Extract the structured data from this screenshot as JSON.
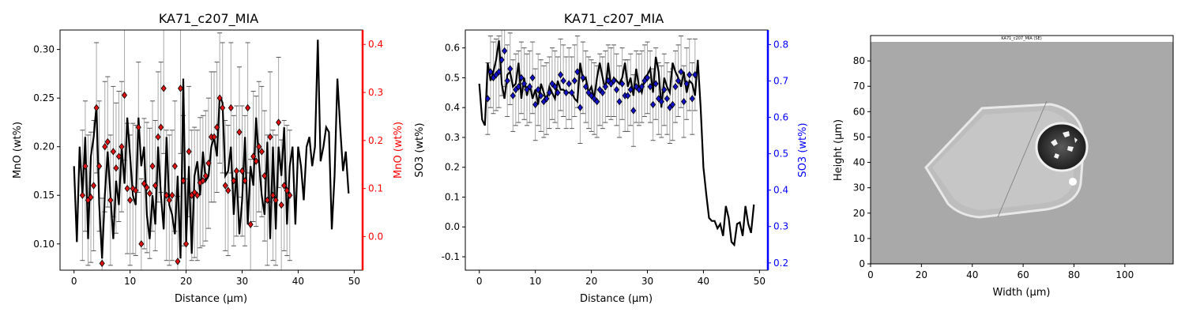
{
  "chart_data": [
    {
      "type": "line",
      "title": "KA71_c207_MIA",
      "xlabel": "Distance (µm)",
      "ylabel": "MnO (wt%)",
      "ylabel_right": "MnO (wt%)",
      "xlim": [
        -2.5,
        51.5
      ],
      "ylim": [
        0.073,
        0.32
      ],
      "ylim_right": [
        -0.07,
        0.43
      ],
      "xticks": [
        0,
        10,
        20,
        30,
        40,
        50
      ],
      "yticks": [
        0.1,
        0.15,
        0.2,
        0.25,
        0.3
      ],
      "yticks_right": [
        0.0,
        0.1,
        0.2,
        0.3,
        0.4
      ],
      "right_axis_color": "#ff0000",
      "line_color": "#000000",
      "point_color": "#e01010",
      "line_series": {
        "x": [
          0,
          0.5,
          1,
          1.5,
          2,
          2.5,
          3,
          3.5,
          4,
          4.5,
          5,
          5.5,
          6,
          6.5,
          7,
          7.5,
          8,
          8.5,
          9,
          9.5,
          10,
          10.5,
          11,
          11.5,
          12,
          12.5,
          13,
          13.5,
          14,
          14.5,
          15,
          15.5,
          16,
          16.5,
          17,
          17.5,
          18,
          18.5,
          19,
          19.5,
          20,
          20.5,
          21,
          21.5,
          22,
          22.5,
          23,
          23.5,
          24,
          24.5,
          25,
          25.5,
          26,
          26.5,
          27,
          27.5,
          28,
          28.5,
          29,
          29.5,
          30,
          30.5,
          31,
          31.5,
          32,
          32.5,
          33,
          33.5,
          34,
          34.5,
          35,
          35.5,
          36,
          36.5,
          37,
          37.5,
          38,
          38.5,
          39,
          39.5,
          40,
          40.5,
          41,
          41.5,
          42,
          42.5,
          43,
          43.5,
          44,
          44.5,
          45,
          45.5,
          46,
          46.5,
          47,
          47.5,
          48,
          48.5,
          49
        ],
        "y": [
          0.18,
          0.102,
          0.2,
          0.15,
          0.21,
          0.105,
          0.19,
          0.21,
          0.242,
          0.14,
          0.085,
          0.15,
          0.195,
          0.15,
          0.105,
          0.165,
          0.14,
          0.2,
          0.162,
          0.23,
          0.19,
          0.15,
          0.14,
          0.23,
          0.18,
          0.2,
          0.13,
          0.105,
          0.15,
          0.12,
          0.2,
          0.15,
          0.115,
          0.21,
          0.14,
          0.13,
          0.11,
          0.17,
          0.085,
          0.27,
          0.1,
          0.18,
          0.09,
          0.17,
          0.185,
          0.15,
          0.195,
          0.165,
          0.17,
          0.2,
          0.21,
          0.19,
          0.252,
          0.245,
          0.17,
          0.175,
          0.2,
          0.13,
          0.175,
          0.11,
          0.145,
          0.21,
          0.12,
          0.18,
          0.16,
          0.23,
          0.185,
          0.15,
          0.13,
          0.205,
          0.105,
          0.2,
          0.115,
          0.2,
          0.17,
          0.22,
          0.12,
          0.18,
          0.2,
          0.12,
          0.2,
          0.18,
          0.145,
          0.2,
          0.21,
          0.18,
          0.2,
          0.31,
          0.185,
          0.2,
          0.22,
          0.215,
          0.115,
          0.17,
          0.27,
          0.22,
          0.175,
          0.195,
          0.152
        ]
      },
      "points": {
        "x": [
          1.5,
          2,
          2.5,
          3,
          3.5,
          4,
          4.5,
          5,
          5.5,
          6,
          6.5,
          7,
          7.5,
          8,
          8.5,
          9,
          9.5,
          10,
          10.5,
          11,
          11.5,
          12,
          12.5,
          13,
          13.5,
          14,
          14.5,
          15,
          15.5,
          16,
          16.5,
          17,
          17.5,
          18,
          18.5,
          19,
          19.5,
          20,
          20.5,
          21,
          21.5,
          22,
          22.5,
          23,
          23.5,
          24,
          24.5,
          25,
          25.5,
          26,
          26.5,
          27,
          27.5,
          28,
          28.5,
          29,
          29.5,
          30,
          30.5,
          31,
          31.5,
          32,
          32.5,
          33,
          33.5,
          34,
          34.5,
          35,
          35.5,
          36,
          36.5,
          37,
          37.5,
          38,
          38.5
        ],
        "y": [
          0.15,
          0.18,
          0.145,
          0.148,
          0.16,
          0.24,
          0.18,
          0.08,
          0.2,
          0.205,
          0.145,
          0.195,
          0.178,
          0.19,
          0.2,
          0.253,
          0.157,
          0.145,
          0.157,
          0.155,
          0.22,
          0.1,
          0.162,
          0.158,
          0.152,
          0.18,
          0.16,
          0.21,
          0.22,
          0.26,
          0.15,
          0.145,
          0.15,
          0.18,
          0.082,
          0.26,
          0.165,
          0.1,
          0.195,
          0.15,
          0.153,
          0.15,
          0.163,
          0.165,
          0.17,
          0.183,
          0.21,
          0.21,
          0.22,
          0.25,
          0.24,
          0.16,
          0.155,
          0.24,
          0.165,
          0.175,
          0.215,
          0.175,
          0.165,
          0.24,
          0.12,
          0.19,
          0.185,
          0.2,
          0.195,
          0.17,
          0.145,
          0.21,
          0.15,
          0.145,
          0.225,
          0.14,
          0.16,
          0.155,
          0.15
        ],
        "err": [
          0.067,
          0.067,
          0.067,
          0.067,
          0.067,
          0.067,
          0.067,
          0.067,
          0.067,
          0.067,
          0.067,
          0.067,
          0.067,
          0.067,
          0.067,
          0.067,
          0.067,
          0.067,
          0.067,
          0.067,
          0.067,
          0.067,
          0.067,
          0.067,
          0.067,
          0.067,
          0.067,
          0.067,
          0.067,
          0.067,
          0.067,
          0.067,
          0.067,
          0.067,
          0.067,
          0.067,
          0.067,
          0.067,
          0.067,
          0.067,
          0.067,
          0.067,
          0.067,
          0.067,
          0.067,
          0.067,
          0.067,
          0.067,
          0.067,
          0.067,
          0.067,
          0.067,
          0.067,
          0.067,
          0.067,
          0.067,
          0.067,
          0.067,
          0.067,
          0.067,
          0.067,
          0.067,
          0.067,
          0.067,
          0.067,
          0.067,
          0.067,
          0.067,
          0.067,
          0.067,
          0.067,
          0.067,
          0.067,
          0.067,
          0.067
        ]
      }
    },
    {
      "type": "line",
      "title": "KA71_c207_MIA",
      "xlabel": "Distance (µm)",
      "ylabel": "SO3 (wt%)",
      "ylabel_right": "SO3 (wt%)",
      "xlim": [
        -2.5,
        51.5
      ],
      "ylim": [
        -0.145,
        0.66
      ],
      "ylim_right": [
        0.18,
        0.84
      ],
      "xticks": [
        0,
        10,
        20,
        30,
        40,
        50
      ],
      "yticks": [
        -0.1,
        0.0,
        0.1,
        0.2,
        0.3,
        0.4,
        0.5,
        0.6
      ],
      "yticks_right": [
        0.2,
        0.3,
        0.4,
        0.5,
        0.6,
        0.7,
        0.8
      ],
      "right_axis_color": "#0000ff",
      "line_color": "#000000",
      "point_color": "#1010c8",
      "line_series": {
        "x": [
          0,
          0.5,
          1,
          1.5,
          2,
          2.5,
          3,
          3.5,
          4,
          4.5,
          5,
          5.5,
          6,
          6.5,
          7,
          7.5,
          8,
          8.5,
          9,
          9.5,
          10,
          10.5,
          11,
          11.5,
          12,
          12.5,
          13,
          13.5,
          14,
          14.5,
          15,
          15.5,
          16,
          16.5,
          17,
          17.5,
          18,
          18.5,
          19,
          19.5,
          20,
          20.5,
          21,
          21.5,
          22,
          22.5,
          23,
          23.5,
          24,
          24.5,
          25,
          25.5,
          26,
          26.5,
          27,
          27.5,
          28,
          28.5,
          29,
          29.5,
          30,
          30.5,
          31,
          31.5,
          32,
          32.5,
          33,
          33.5,
          34,
          34.5,
          35,
          35.5,
          36,
          36.5,
          37,
          37.5,
          38,
          38.5,
          39,
          39.5,
          40,
          40.5,
          41,
          41.5,
          42,
          42.5,
          43,
          43.5,
          44,
          44.5,
          45,
          45.5,
          46,
          46.5,
          47,
          47.5,
          48,
          48.5,
          49
        ],
        "y": [
          0.48,
          0.36,
          0.34,
          0.55,
          0.49,
          0.52,
          0.56,
          0.625,
          0.48,
          0.43,
          0.51,
          0.52,
          0.47,
          0.48,
          0.55,
          0.43,
          0.5,
          0.44,
          0.48,
          0.43,
          0.46,
          0.41,
          0.48,
          0.45,
          0.42,
          0.47,
          0.45,
          0.43,
          0.49,
          0.46,
          0.46,
          0.45,
          0.45,
          0.45,
          0.43,
          0.42,
          0.55,
          0.49,
          0.5,
          0.45,
          0.47,
          0.43,
          0.5,
          0.55,
          0.5,
          0.46,
          0.55,
          0.47,
          0.5,
          0.49,
          0.48,
          0.5,
          0.55,
          0.47,
          0.5,
          0.44,
          0.53,
          0.47,
          0.45,
          0.5,
          0.51,
          0.53,
          0.45,
          0.57,
          0.52,
          0.4,
          0.5,
          0.47,
          0.45,
          0.55,
          0.52,
          0.5,
          0.47,
          0.52,
          0.45,
          0.49,
          0.48,
          0.44,
          0.56,
          0.4,
          0.2,
          0.11,
          0.03,
          0.02,
          0.02,
          -0.005,
          0.01,
          -0.03,
          0.07,
          0.03,
          -0.05,
          -0.06,
          0.01,
          0.015,
          -0.03,
          0.07,
          0.01,
          -0.02,
          0.075
        ]
      },
      "points": {
        "x": [
          1.5,
          2,
          2.5,
          3,
          3.5,
          4,
          4.5,
          5,
          5.5,
          6,
          6.5,
          7,
          7.5,
          8,
          8.5,
          9,
          9.5,
          10,
          10.5,
          11,
          11.5,
          12,
          12.5,
          13,
          13.5,
          14,
          14.5,
          15,
          15.5,
          16,
          16.5,
          17,
          17.5,
          18,
          18.5,
          19,
          19.5,
          20,
          20.5,
          21,
          21.5,
          22,
          22.5,
          23,
          23.5,
          24,
          24.5,
          25,
          25.5,
          26,
          26.5,
          27,
          27.5,
          28,
          28.5,
          29,
          29.5,
          30,
          30.5,
          31,
          31.5,
          32,
          32.5,
          33,
          33.5,
          34,
          34.5,
          35,
          35.5,
          36,
          36.5,
          37,
          37.5,
          38,
          38.5
        ],
        "y": [
          0.43,
          0.52,
          0.5,
          0.51,
          0.52,
          0.56,
          0.59,
          0.49,
          0.53,
          0.44,
          0.46,
          0.47,
          0.5,
          0.48,
          0.46,
          0.47,
          0.5,
          0.41,
          0.46,
          0.44,
          0.42,
          0.43,
          0.45,
          0.48,
          0.47,
          0.45,
          0.51,
          0.49,
          0.45,
          0.48,
          0.45,
          0.49,
          0.52,
          0.4,
          0.5,
          0.47,
          0.45,
          0.44,
          0.43,
          0.42,
          0.46,
          0.45,
          0.47,
          0.49,
          0.48,
          0.49,
          0.46,
          0.42,
          0.48,
          0.44,
          0.44,
          0.46,
          0.39,
          0.47,
          0.46,
          0.47,
          0.49,
          0.5,
          0.47,
          0.41,
          0.48,
          0.43,
          0.42,
          0.46,
          0.43,
          0.4,
          0.41,
          0.47,
          0.49,
          0.52,
          0.42,
          0.48,
          0.51,
          0.43,
          0.51
        ],
        "err": [
          0.12,
          0.12,
          0.12,
          0.12,
          0.12,
          0.12,
          0.12,
          0.12,
          0.12,
          0.12,
          0.12,
          0.12,
          0.12,
          0.12,
          0.12,
          0.12,
          0.12,
          0.12,
          0.12,
          0.12,
          0.12,
          0.12,
          0.12,
          0.12,
          0.12,
          0.12,
          0.12,
          0.12,
          0.12,
          0.12,
          0.12,
          0.12,
          0.12,
          0.12,
          0.12,
          0.12,
          0.12,
          0.12,
          0.12,
          0.12,
          0.12,
          0.12,
          0.12,
          0.12,
          0.12,
          0.12,
          0.12,
          0.12,
          0.12,
          0.12,
          0.12,
          0.12,
          0.12,
          0.12,
          0.12,
          0.12,
          0.12,
          0.12,
          0.12,
          0.12,
          0.12,
          0.12,
          0.12,
          0.12,
          0.12,
          0.12,
          0.12,
          0.12,
          0.12,
          0.12,
          0.12,
          0.12,
          0.12,
          0.12,
          0.12
        ]
      }
    },
    {
      "type": "image",
      "title": "",
      "image_label": "KA71_c207_MIA (SE)",
      "xlabel": "Width (µm)",
      "ylabel": "Height (µm)",
      "xlim": [
        0,
        119
      ],
      "ylim": [
        0,
        90
      ],
      "xticks": [
        0,
        20,
        40,
        60,
        80,
        100
      ],
      "yticks": [
        0,
        10,
        20,
        30,
        40,
        50,
        60,
        70,
        80
      ]
    }
  ]
}
